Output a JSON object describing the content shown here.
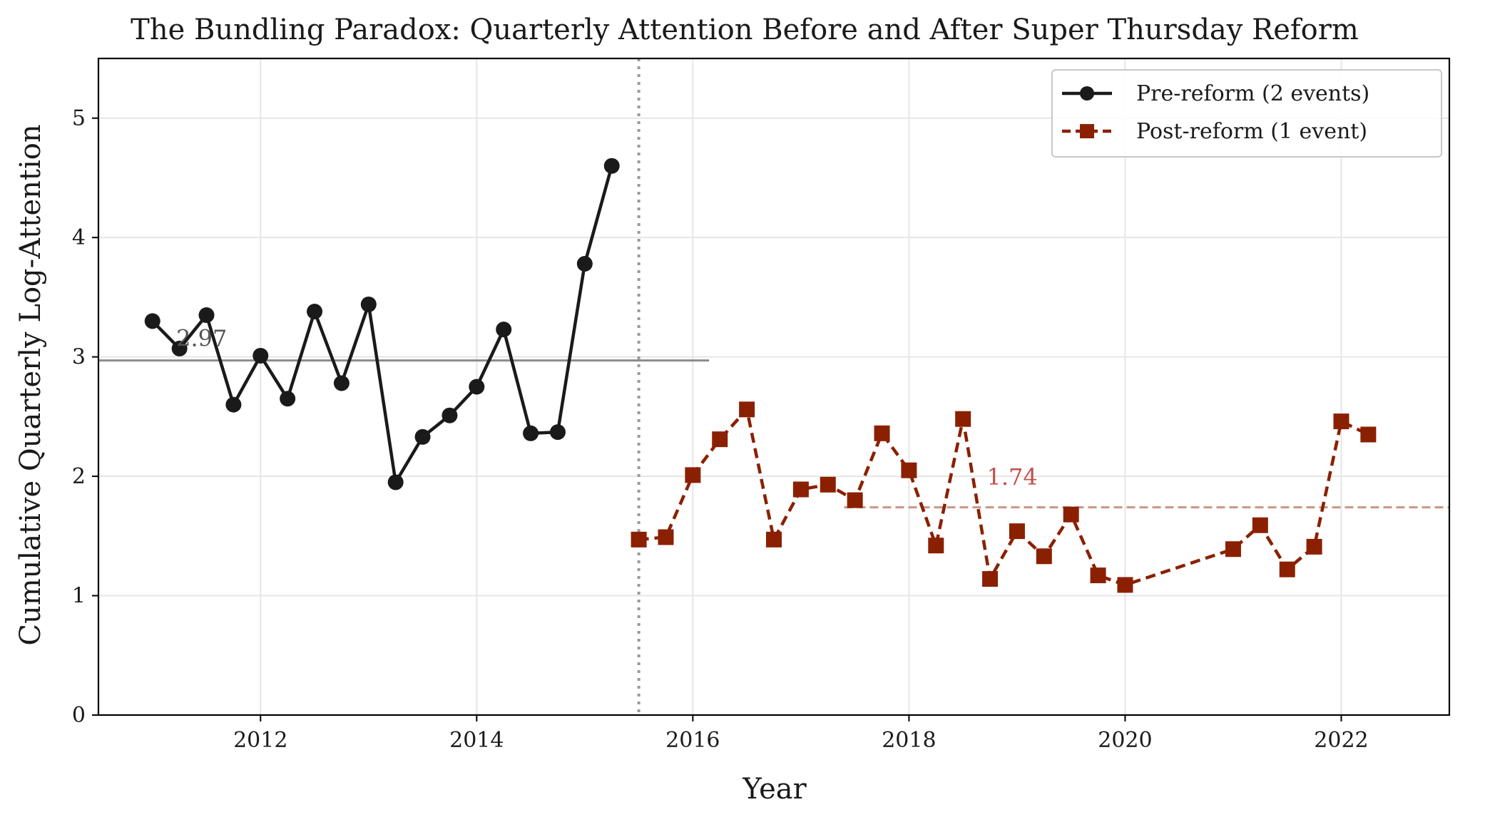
{
  "colors": {
    "pre": "#1a1a1a",
    "post": "#8b2000",
    "pre_mean": "#8c8c8c",
    "post_mean": "#c8968a",
    "pre_annotation": "#555555",
    "post_annotation": "#c0504d",
    "reform_line": "#9a9a9a",
    "grid": "#e6e6e6"
  },
  "chart_data": {
    "type": "line",
    "title": "The Bundling Paradox: Quarterly Attention Before and After Super Thursday Reform",
    "xlabel": "Year",
    "ylabel": "Cumulative Quarterly Log-Attention",
    "xlim": [
      2010.5,
      2023.0
    ],
    "ylim": [
      0,
      5.5
    ],
    "xticks": [
      2012,
      2014,
      2016,
      2018,
      2020,
      2022
    ],
    "yticks": [
      0,
      1,
      2,
      3,
      4,
      5
    ],
    "grid": true,
    "legend_position": "top-right",
    "reform_date": 2015.5,
    "series": [
      {
        "name": "Pre-reform (2 events)",
        "style": "solid",
        "marker": "circle",
        "x": [
          2011.0,
          2011.25,
          2011.5,
          2011.75,
          2012.0,
          2012.25,
          2012.5,
          2012.75,
          2013.0,
          2013.25,
          2013.5,
          2013.75,
          2014.0,
          2014.25,
          2014.5,
          2014.75,
          2015.0,
          2015.25
        ],
        "y": [
          3.3,
          3.07,
          3.35,
          2.6,
          3.01,
          2.65,
          3.38,
          2.78,
          3.44,
          1.95,
          2.33,
          2.51,
          2.75,
          3.23,
          2.36,
          2.37,
          3.78,
          4.6
        ]
      },
      {
        "name": "Post-reform (1 event)",
        "style": "dashed",
        "marker": "square",
        "x": [
          2015.5,
          2015.75,
          2016.0,
          2016.25,
          2016.5,
          2016.75,
          2017.0,
          2017.25,
          2017.5,
          2017.75,
          2018.0,
          2018.25,
          2018.5,
          2018.75,
          2019.0,
          2019.25,
          2019.5,
          2019.75,
          2020.0,
          2021.0,
          2021.25,
          2021.5,
          2021.75,
          2022.0,
          2022.25
        ],
        "y": [
          1.47,
          1.49,
          2.01,
          2.31,
          2.56,
          1.47,
          1.89,
          1.93,
          1.8,
          2.36,
          2.05,
          1.42,
          2.48,
          1.14,
          1.54,
          1.33,
          1.68,
          1.17,
          1.09,
          1.39,
          1.59,
          1.22,
          1.41,
          2.46,
          2.35
        ]
      }
    ],
    "mean_lines": [
      {
        "series": "Pre-reform (2 events)",
        "value": 2.97,
        "x_start": 2010.5,
        "x_end": 2016.15,
        "label": "2.97",
        "label_x": 2011.22,
        "label_y": 3.09
      },
      {
        "series": "Post-reform (1 event)",
        "value": 1.74,
        "x_start": 2017.4,
        "x_end": 2023.0,
        "label": "1.74",
        "label_x": 2018.72,
        "label_y": 1.93
      }
    ]
  }
}
